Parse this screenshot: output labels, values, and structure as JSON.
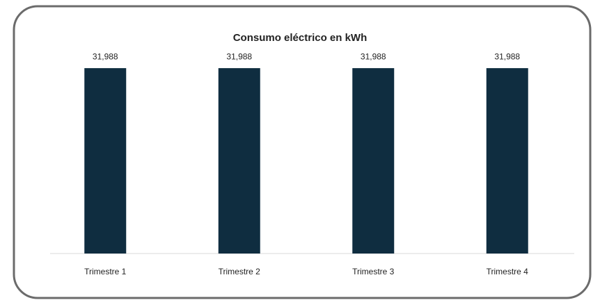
{
  "chart_data": {
    "type": "bar",
    "title": "Consumo eléctrico en kWh",
    "categories": [
      "Trimestre 1",
      "Trimestre 2",
      "Trimestre 3",
      "Trimestre 4"
    ],
    "values": [
      31988,
      31988,
      31988,
      31988
    ],
    "value_labels": [
      "31,988",
      "31,988",
      "31,988",
      "31,988"
    ],
    "color": "#0f2d40",
    "ylim": [
      0,
      32000
    ]
  }
}
